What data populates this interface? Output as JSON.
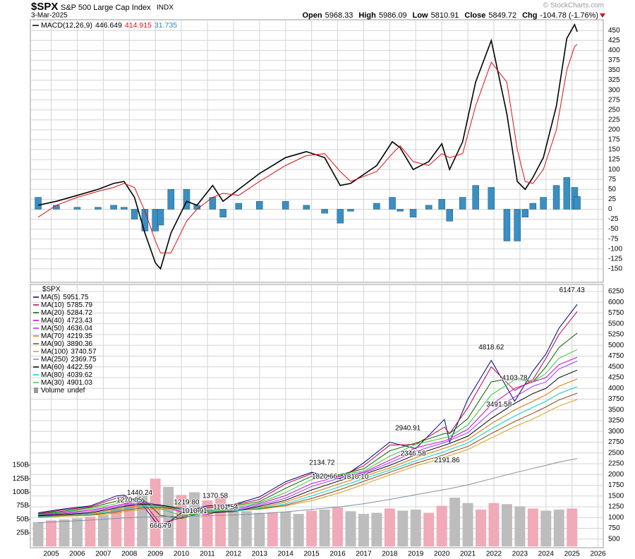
{
  "header": {
    "symbol": "$SPX",
    "name": "S&P 500 Large Cap Index",
    "exchange": "INDX",
    "date": "3-Mar-2025",
    "quote": [
      {
        "label": "Open",
        "value": 5968.33
      },
      {
        "label": "High",
        "value": 5986.09
      },
      {
        "label": "Low",
        "value": 5810.91
      },
      {
        "label": "Close",
        "value": 5849.72
      }
    ],
    "chg_label": "Chg",
    "chg": -104.78,
    "chg_pct": "(-1.76%)",
    "source": "© StockCharts.com"
  },
  "chart_data": [
    {
      "type": "line",
      "legend": "top-left",
      "legend_layout": "inline",
      "grid": true,
      "ylim": [
        -184,
        477
      ],
      "yticks": [
        -150,
        -125,
        -100,
        -75,
        -50,
        -25,
        0,
        25,
        50,
        75,
        100,
        125,
        150,
        175,
        200,
        225,
        250,
        275,
        300,
        325,
        350,
        375,
        400,
        425,
        450
      ],
      "x": [
        2004.5,
        2005.2,
        2006,
        2006.8,
        2007.4,
        2007.8,
        2008.2,
        2008.6,
        2009.0,
        2009.2,
        2009.6,
        2010.2,
        2010.6,
        2011.2,
        2011.6,
        2012.2,
        2013,
        2014,
        2014.8,
        2015.5,
        2016.1,
        2016.5,
        2017.5,
        2018.1,
        2018.4,
        2018.9,
        2019.5,
        2020.0,
        2020.3,
        2020.8,
        2021.3,
        2021.9,
        2022.5,
        2022.9,
        2023.2,
        2023.5,
        2023.9,
        2024.4,
        2024.8,
        2025.1,
        2025.2
      ],
      "series": [
        {
          "type": "bar",
          "color": "#3a8fc2",
          "last": 31.735,
          "label_color": "#2a8aa8",
          "values": [
            30,
            10,
            5,
            5,
            10,
            5,
            -25,
            -55,
            -55,
            -40,
            50,
            50,
            10,
            30,
            -20,
            15,
            20,
            20,
            10,
            -10,
            -35,
            -5,
            15,
            30,
            -5,
            -20,
            10,
            25,
            -30,
            30,
            60,
            55,
            -80,
            -80,
            -20,
            15,
            30,
            60,
            80,
            55,
            32
          ]
        },
        {
          "type": "line",
          "name": "MACD(12,26,9)",
          "color": "#000000",
          "last": 446.649,
          "values": [
            10,
            20,
            35,
            50,
            65,
            70,
            30,
            -60,
            -135,
            -150,
            -60,
            20,
            10,
            60,
            20,
            50,
            90,
            130,
            145,
            130,
            60,
            65,
            110,
            170,
            155,
            100,
            120,
            165,
            100,
            170,
            320,
            425,
            240,
            70,
            50,
            80,
            130,
            260,
            430,
            465,
            447
          ]
        },
        {
          "type": "line",
          "color": "#dd1111",
          "last": 414.915,
          "values": [
            -20,
            10,
            30,
            45,
            55,
            65,
            55,
            -5,
            -80,
            -110,
            -110,
            -30,
            0,
            30,
            40,
            35,
            70,
            110,
            135,
            140,
            95,
            70,
            95,
            140,
            160,
            120,
            110,
            140,
            130,
            140,
            260,
            370,
            320,
            150,
            70,
            65,
            100,
            200,
            350,
            410,
            415
          ]
        }
      ]
    },
    {
      "type": "line",
      "legend": "top-left",
      "legend_layout": "column",
      "legend_title": "$SPX",
      "grid": true,
      "xlim": [
        2004.2,
        2026.2
      ],
      "xticks": [
        2005,
        2006,
        2007,
        2008,
        2009,
        2010,
        2011,
        2012,
        2013,
        2014,
        2015,
        2016,
        2017,
        2018,
        2019,
        2020,
        2021,
        2022,
        2023,
        2024,
        2025,
        2026
      ],
      "ylim": [
        299,
        6414
      ],
      "yticks": [
        500,
        750,
        1000,
        1250,
        1500,
        1750,
        2000,
        2250,
        2500,
        2750,
        3000,
        3250,
        3500,
        3750,
        4000,
        4250,
        4500,
        4750,
        5000,
        5250,
        5500,
        5750,
        6000,
        6250
      ],
      "y2lim": [
        -2300000000,
        483000000000
      ],
      "y2ticks": [
        {
          "value": 25000000000,
          "label": "25B"
        },
        {
          "value": 50000000000,
          "label": "50B"
        },
        {
          "value": 75000000000,
          "label": "75B"
        },
        {
          "value": 100000000000,
          "label": "100B"
        },
        {
          "value": 125000000000,
          "label": "125B"
        },
        {
          "value": 150000000000,
          "label": "150B"
        }
      ],
      "x": [
        2004.5,
        2005.5,
        2006.5,
        2007.5,
        2007.8,
        2008.5,
        2009.2,
        2010,
        2011,
        2012,
        2013,
        2014,
        2015,
        2016.1,
        2017,
        2018,
        2019,
        2020.1,
        2020.3,
        2021,
        2021.9,
        2022.8,
        2023.5,
        2024,
        2024.5,
        2025.2
      ],
      "series": [
        {
          "type": "bar",
          "axis": "y2",
          "name": "Volume",
          "last_label": "undef",
          "color": "#9a9a9a",
          "x": [
            2004.5,
            2005,
            2005.5,
            2006,
            2006.5,
            2007,
            2007.5,
            2008,
            2008.5,
            2009,
            2009.5,
            2010,
            2010.5,
            2011,
            2011.5,
            2012,
            2012.5,
            2013,
            2013.5,
            2014,
            2014.5,
            2015,
            2015.5,
            2016,
            2016.5,
            2017,
            2017.5,
            2018,
            2018.5,
            2019,
            2019.5,
            2020,
            2020.5,
            2021,
            2021.5,
            2022,
            2022.5,
            2023,
            2023.5,
            2024,
            2024.5,
            2025
          ],
          "values": [
            45000000000.0,
            48000000000.0,
            50000000000.0,
            52000000000.0,
            55000000000.0,
            58000000000.0,
            70000000000.0,
            85000000000.0,
            95000000000.0,
            125000000000.0,
            110000000000.0,
            95000000000.0,
            100000000000.0,
            85000000000.0,
            90000000000.0,
            70000000000.0,
            65000000000.0,
            62000000000.0,
            63000000000.0,
            64000000000.0,
            60000000000.0,
            66000000000.0,
            68000000000.0,
            72000000000.0,
            65000000000.0,
            60000000000.0,
            62000000000.0,
            70000000000.0,
            66000000000.0,
            68000000000.0,
            62000000000.0,
            75000000000.0,
            90000000000.0,
            80000000000.0,
            68000000000.0,
            80000000000.0,
            78000000000.0,
            74000000000.0,
            70000000000.0,
            66000000000.0,
            68000000000.0,
            70000000000.0
          ],
          "colors": [
            "#bdbdbd",
            "#f0aab8",
            "#bdbdbd",
            "#bdbdbd",
            "#f0aab8",
            "#bdbdbd",
            "#f0aab8",
            "#f0aab8",
            "#bdbdbd",
            "#f0aab8",
            "#bdbdbd",
            "#f0aab8",
            "#bdbdbd",
            "#f0aab8",
            "#f0aab8",
            "#bdbdbd",
            "#bdbdbd",
            "#bdbdbd",
            "#f0aab8",
            "#bdbdbd",
            "#bdbdbd",
            "#f0aab8",
            "#bdbdbd",
            "#f0aab8",
            "#bdbdbd",
            "#bdbdbd",
            "#bdbdbd",
            "#f0aab8",
            "#bdbdbd",
            "#bdbdbd",
            "#f0aab8",
            "#f0aab8",
            "#bdbdbd",
            "#bdbdbd",
            "#f0aab8",
            "#f0aab8",
            "#bdbdbd",
            "#bdbdbd",
            "#f0aab8",
            "#bdbdbd",
            "#bdbdbd",
            "#f0aab8"
          ]
        },
        {
          "type": "line",
          "name": "MA(5)",
          "color": "#000080",
          "last": 5951.75,
          "values": [
            1110,
            1200,
            1270,
            1500,
            1520,
            1300,
            750,
            1110,
            1270,
            1300,
            1480,
            1830,
            2050,
            1900,
            2270,
            2750,
            2600,
            3280,
            2750,
            3750,
            4650,
            3700,
            4400,
            4800,
            5400,
            5952
          ]
        },
        {
          "type": "line",
          "name": "MA(10)",
          "color": "#c0003c",
          "last": 5785.79,
          "values": [
            1090,
            1180,
            1250,
            1450,
            1490,
            1380,
            850,
            1000,
            1230,
            1290,
            1420,
            1780,
            2020,
            1960,
            2200,
            2680,
            2700,
            3100,
            2950,
            3550,
            4500,
            3950,
            4200,
            4700,
            5250,
            5786
          ]
        },
        {
          "type": "line",
          "name": "MA(20)",
          "color": "#006400",
          "last": 5284.72,
          "values": [
            1080,
            1150,
            1230,
            1380,
            1430,
            1430,
            1050,
            980,
            1150,
            1270,
            1370,
            1680,
            1960,
            2000,
            2130,
            2550,
            2730,
            2950,
            2950,
            3300,
            4150,
            4250,
            4150,
            4500,
            4950,
            5285
          ]
        },
        {
          "type": "line",
          "name": "MA(40)",
          "color": "#cc00cc",
          "last": 4723.43,
          "values": [
            1060,
            1110,
            1170,
            1280,
            1320,
            1380,
            1270,
            1130,
            1080,
            1190,
            1320,
            1510,
            1790,
            1960,
            2050,
            2330,
            2620,
            2780,
            2830,
            3050,
            3620,
            4000,
            4150,
            4250,
            4550,
            4723
          ]
        },
        {
          "type": "line",
          "name": "MA(50)",
          "color": "#9933ff",
          "last": 4636.04,
          "values": [
            1050,
            1090,
            1140,
            1250,
            1290,
            1340,
            1290,
            1180,
            1090,
            1160,
            1290,
            1450,
            1720,
            1920,
            2030,
            2270,
            2540,
            2740,
            2790,
            2970,
            3450,
            3800,
            4050,
            4150,
            4450,
            4636
          ]
        },
        {
          "type": "line",
          "name": "MA(70)",
          "color": "#e07000",
          "last": 4219.35,
          "values": [
            1030,
            1060,
            1090,
            1190,
            1230,
            1280,
            1270,
            1220,
            1140,
            1140,
            1230,
            1360,
            1570,
            1790,
            1960,
            2150,
            2390,
            2610,
            2650,
            2810,
            3180,
            3500,
            3700,
            3850,
            4050,
            4219
          ]
        },
        {
          "type": "line",
          "name": "MA(90)",
          "color": "#8b4513",
          "last": 3890.36,
          "values": [
            1010,
            1040,
            1060,
            1130,
            1170,
            1220,
            1230,
            1200,
            1170,
            1160,
            1200,
            1290,
            1440,
            1650,
            1840,
            2050,
            2260,
            2460,
            2510,
            2650,
            2950,
            3230,
            3420,
            3570,
            3730,
            3890
          ]
        },
        {
          "type": "line",
          "name": "MA(100)",
          "color": "#d4a017",
          "last": 3740.57,
          "values": [
            1000,
            1030,
            1050,
            1100,
            1140,
            1190,
            1200,
            1190,
            1170,
            1160,
            1190,
            1270,
            1390,
            1580,
            1770,
            1990,
            2200,
            2390,
            2440,
            2580,
            2850,
            3110,
            3290,
            3440,
            3590,
            3741
          ]
        },
        {
          "type": "line",
          "name": "MA(250)",
          "color": "#8090a0",
          "last": 2369.75,
          "values": [
            880,
            910,
            940,
            980,
            990,
            1010,
            1020,
            1030,
            1040,
            1060,
            1090,
            1130,
            1190,
            1250,
            1320,
            1420,
            1530,
            1650,
            1670,
            1760,
            1900,
            2040,
            2140,
            2210,
            2290,
            2370
          ]
        },
        {
          "type": "line",
          "name": "MA(60)",
          "color": "#000000",
          "last": 4422.59,
          "values": [
            1040,
            1070,
            1110,
            1220,
            1260,
            1310,
            1290,
            1210,
            1110,
            1140,
            1260,
            1400,
            1640,
            1860,
            2000,
            2210,
            2460,
            2680,
            2720,
            2890,
            3300,
            3650,
            3880,
            4000,
            4250,
            4423
          ]
        },
        {
          "type": "line",
          "name": "MA(80)",
          "color": "#00cccc",
          "last": 4039.62,
          "values": [
            1020,
            1050,
            1070,
            1160,
            1200,
            1250,
            1250,
            1210,
            1160,
            1150,
            1210,
            1320,
            1500,
            1720,
            1900,
            2100,
            2320,
            2530,
            2580,
            2730,
            3060,
            3360,
            3560,
            3700,
            3880,
            4040
          ]
        },
        {
          "type": "line",
          "name": "MA(30)",
          "color": "#33cc33",
          "last": 4901.03,
          "values": [
            1070,
            1130,
            1200,
            1320,
            1370,
            1410,
            1200,
            1050,
            1100,
            1230,
            1340,
            1580,
            1880,
            1990,
            2080,
            2420,
            2700,
            2850,
            2880,
            3150,
            3850,
            4200,
            4150,
            4350,
            4700,
            4901
          ]
        }
      ],
      "annotations": {
        "x": [
          2025.0,
          2021.9,
          2022.8,
          2022.2,
          2018.7,
          2018.9,
          2020.2,
          2015.4,
          2015.5,
          2016.7,
          2008.4,
          2008.0,
          2010.2,
          2011.3,
          2010.5,
          2011.7,
          2009.2
        ],
        "values": [
          6147.43,
          4818.62,
          4103.78,
          3491.58,
          2940.91,
          2346.58,
          2191.86,
          2134.72,
          1820.66,
          1810.1,
          1440.24,
          1270.05,
          1219.8,
          1370.58,
          1010.91,
          1101.54,
          666.79
        ],
        "value_labels": [
          "6147.43",
          "4818.62",
          "4103.78",
          "3491.58",
          "2940.91",
          "2346.58",
          "2191.86",
          "2134.72",
          "1820.66",
          "1810.10",
          "1440.24",
          "1270.05",
          "1219.80",
          "1370.58",
          "1010.91",
          "1101.54",
          "666.79"
        ]
      }
    }
  ]
}
